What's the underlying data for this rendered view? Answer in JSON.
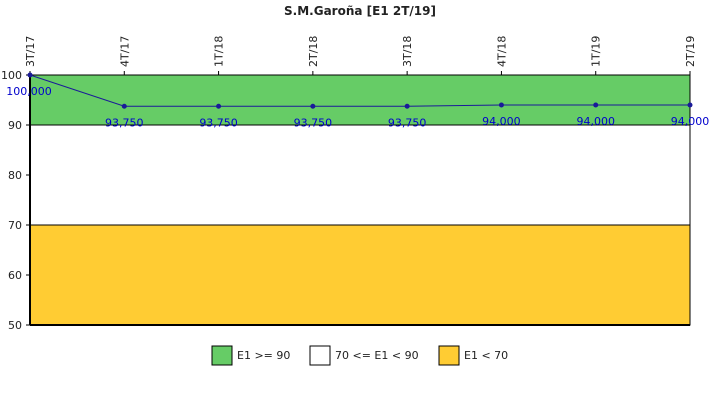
{
  "chart_data": {
    "type": "line",
    "title": "S.M.Garoña [E1 2T/19]",
    "categories": [
      "3T/17",
      "4T/17",
      "1T/18",
      "2T/18",
      "3T/18",
      "4T/18",
      "1T/19",
      "2T/19"
    ],
    "series": [
      {
        "values": [
          100,
          93.75,
          93.75,
          93.75,
          93.75,
          94,
          94,
          94
        ],
        "data_labels": [
          "100,000",
          "93,750",
          "93,750",
          "93,750",
          "93,750",
          "94,000",
          "94,000",
          "94,000"
        ],
        "color": "#1a1a99"
      }
    ],
    "ylim": [
      50,
      100
    ],
    "yticks": [
      50,
      60,
      70,
      80,
      90,
      100
    ],
    "bands": [
      {
        "from": 90,
        "to": 100,
        "color": "#66cc66",
        "label": "E1 >= 90"
      },
      {
        "from": 70,
        "to": 90,
        "color": "#ffffff",
        "label": "70 <= E1 < 90"
      },
      {
        "from": 50,
        "to": 70,
        "color": "#ffcc33",
        "label": "E1 < 70"
      }
    ],
    "legend_position": "bottom",
    "grid": false
  }
}
